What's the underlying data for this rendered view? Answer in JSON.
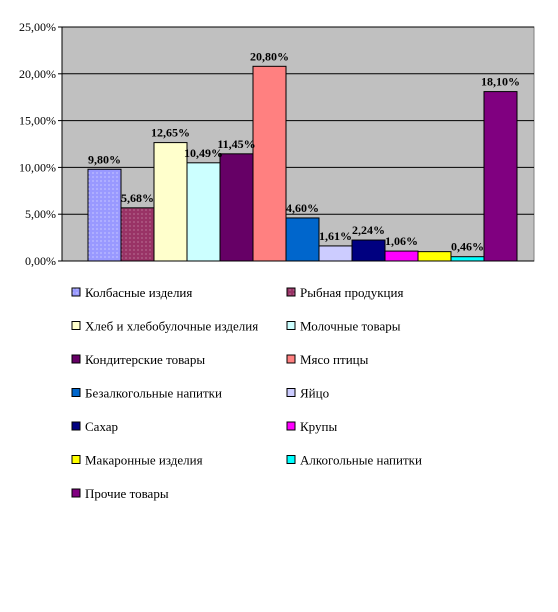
{
  "chart_data": {
    "type": "bar",
    "categories": [
      "Колбасные изделия",
      "Рыбная продукция",
      "Хлеб и хлебобулочные изделия",
      "Молочные товары",
      "Кондитерские товары",
      "Мясо птицы",
      "Безалкогольные напитки",
      "Яйцо",
      "Сахар",
      "Крупы",
      "Макаронные изделия",
      "Алкогольные напитки",
      "Прочие товары"
    ],
    "values": [
      9.8,
      5.68,
      12.65,
      10.49,
      11.45,
      20.8,
      4.6,
      1.61,
      2.24,
      1.06,
      1.0,
      0.46,
      18.1
    ],
    "data_labels": [
      "9,80%",
      "5,68%",
      "12,65%",
      "10,49%",
      "11,45%",
      "20,80%",
      "4,60%",
      "1,61%",
      "2,24%",
      "1,06%",
      "",
      "0,46%",
      "18,10%"
    ],
    "colors": [
      "#9999ff",
      "#993366",
      "#ffffcc",
      "#ccffff",
      "#660066",
      "#ff8080",
      "#0066cc",
      "#ccccff",
      "#000080",
      "#ff00ff",
      "#ffff00",
      "#00ffff",
      "#800080"
    ],
    "ylim": [
      0,
      25
    ],
    "yticks": [
      0,
      5,
      10,
      15,
      20,
      25
    ],
    "ytick_labels": [
      "0,00%",
      "5,00%",
      "10,00%",
      "15,00%",
      "20,00%",
      "25,00%"
    ],
    "plot_background": "#c0c0c0",
    "grid": true,
    "legend_position": "bottom",
    "title": "",
    "xlabel": "",
    "ylabel": ""
  }
}
